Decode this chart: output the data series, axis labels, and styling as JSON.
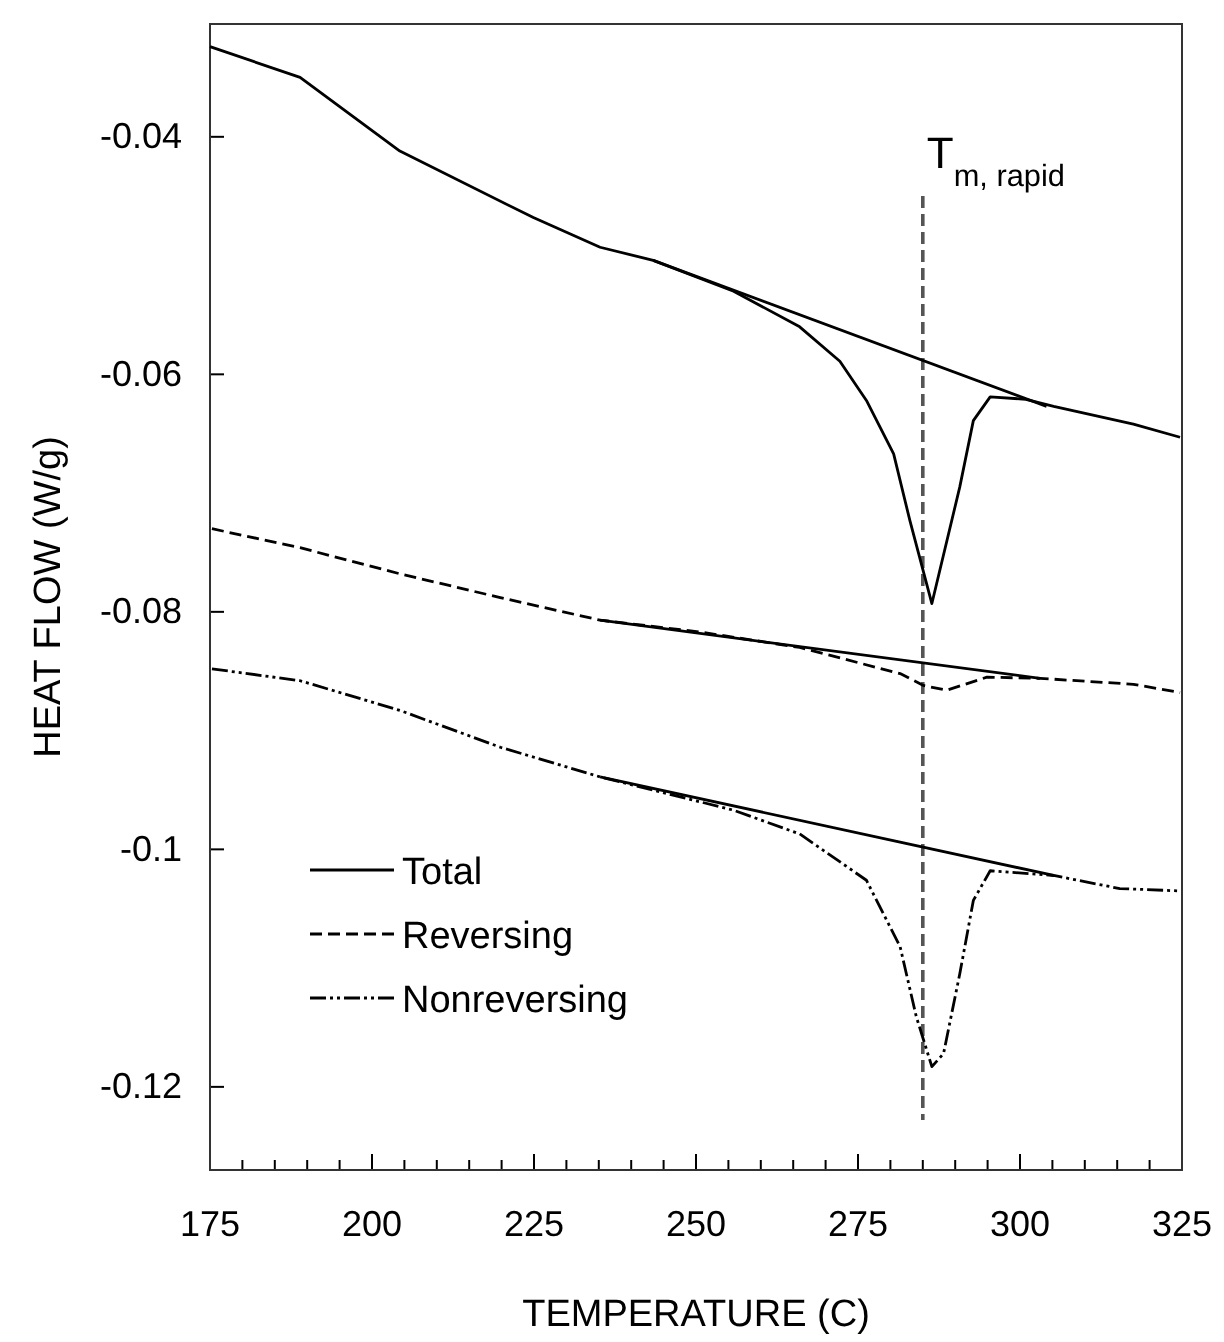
{
  "chart_data": {
    "type": "line",
    "xlabel": "TEMPERATURE (C)",
    "ylabel": "HEAT FLOW (W/g)",
    "xlim": [
      175,
      325
    ],
    "ylim": [
      -0.127,
      -0.0305
    ],
    "xticks": [
      175,
      {
        "value": 180,
        "label": null
      },
      {
        "value": 185,
        "label": null
      },
      {
        "value": 190,
        "label": null
      },
      {
        "value": 195,
        "label": null
      },
      200,
      {
        "value": 205,
        "label": null
      },
      {
        "value": 210,
        "label": null
      },
      {
        "value": 215,
        "label": null
      },
      {
        "value": 220,
        "label": null
      },
      225,
      {
        "value": 230,
        "label": null
      },
      {
        "value": 235,
        "label": null
      },
      {
        "value": 240,
        "label": null
      },
      {
        "value": 245,
        "label": null
      },
      250,
      {
        "value": 255,
        "label": null
      },
      {
        "value": 260,
        "label": null
      },
      {
        "value": 265,
        "label": null
      },
      {
        "value": 270,
        "label": null
      },
      275,
      {
        "value": 280,
        "label": null
      },
      {
        "value": 285,
        "label": null
      },
      {
        "value": 290,
        "label": null
      },
      {
        "value": 295,
        "label": null
      },
      300,
      {
        "value": 305,
        "label": null
      },
      {
        "value": 310,
        "label": null
      },
      {
        "value": 315,
        "label": null
      },
      {
        "value": 320,
        "label": null
      },
      325
    ],
    "yticks": [
      -0.04,
      -0.06,
      -0.08,
      -0.1,
      -0.12
    ],
    "grid": false,
    "legend": "bottom left",
    "marker": "none",
    "ref_lines": [
      {
        "axis": "x",
        "value": 285,
        "label": "T$_{m, rapid}$",
        "color": "#555555",
        "line_style": "dashed"
      }
    ],
    "series": [
      {
        "name": "Total",
        "color": "#000000",
        "line_style": "solid",
        "x": [
          175,
          188.9,
          204.3,
          224.9,
          235.2,
          243.4,
          255.8,
          266,
          272.2,
          276.3,
          280.5,
          283,
          286.4,
          290.7,
          292.8,
          295.4,
          300.9,
          305.2,
          317.5,
          324.7
        ],
        "values": [
          -0.0324,
          -0.035,
          -0.0412,
          -0.0468,
          -0.0493,
          -0.0504,
          -0.053,
          -0.056,
          -0.0589,
          -0.0622,
          -0.0667,
          -0.0723,
          -0.0793,
          -0.0695,
          -0.0639,
          -0.0619,
          -0.0621,
          -0.0627,
          -0.0642,
          -0.0653
        ]
      },
      {
        "name": "Reversing",
        "color": "#000000",
        "line_style": "dashed",
        "x": [
          175.3,
          188.9,
          204.3,
          219.8,
          235.2,
          250.6,
          266,
          281.5,
          285.1,
          288.7,
          294.9,
          303.1,
          317.5,
          324.7
        ],
        "values": [
          -0.073,
          -0.0746,
          -0.0768,
          -0.0788,
          -0.0807,
          -0.0817,
          -0.083,
          -0.0852,
          -0.0862,
          -0.0866,
          -0.0855,
          -0.0856,
          -0.0861,
          -0.0868
        ]
      },
      {
        "name": "Nonreversing",
        "color": "#000000",
        "line_style": "dotted",
        "x": [
          175.3,
          188.9,
          204.3,
          219.8,
          235.2,
          255.8,
          266,
          276.3,
          281.5,
          284,
          286.4,
          288.2,
          290.7,
          292.8,
          295.4,
          305.2,
          315.4,
          324.7
        ],
        "values": [
          -0.0848,
          -0.0858,
          -0.0883,
          -0.0914,
          -0.0939,
          -0.0967,
          -0.0987,
          -0.1026,
          -0.1082,
          -0.1141,
          -0.1183,
          -0.1172,
          -0.1105,
          -0.1043,
          -0.1018,
          -0.1022,
          -0.1033,
          -0.1035
        ]
      },
      {
        "type": "line",
        "color": "#000000",
        "line_style": "solid",
        "x": [
          243.4,
          304.1
        ],
        "values": [
          -0.0504,
          -0.0627
        ]
      },
      {
        "type": "line",
        "color": "#000000",
        "line_style": "solid",
        "x": [
          235.2,
          303.1
        ],
        "values": [
          -0.0807,
          -0.0856
        ]
      },
      {
        "type": "line",
        "color": "#000000",
        "line_style": "solid",
        "x": [
          235.2,
          305.2
        ],
        "values": [
          -0.0939,
          -0.1022
        ]
      }
    ]
  }
}
